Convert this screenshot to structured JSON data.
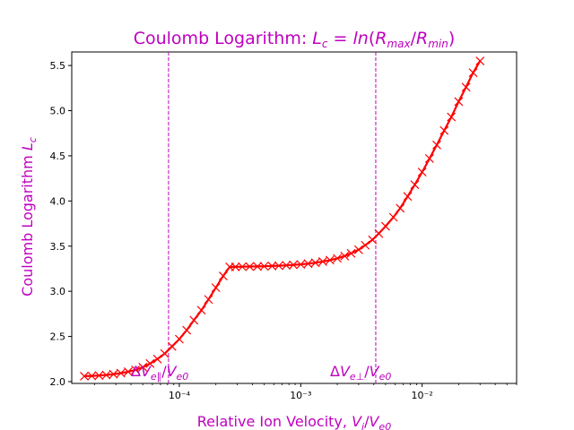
{
  "chart_data": {
    "type": "line",
    "title": "Coulomb Logarithm: L_c = ln(R_max/R_min)",
    "xlabel": "Relative Ion Velocity, V_i/V_e0",
    "ylabel": "Coulomb Logarithm L_c",
    "xscale": "log",
    "xlim": [
      1.3e-05,
      0.06
    ],
    "ylim": [
      1.98,
      5.65
    ],
    "x_ticks": [
      {
        "value": 0.0001,
        "label": "10⁻⁴"
      },
      {
        "value": 0.001,
        "label": "10⁻³"
      },
      {
        "value": 0.01,
        "label": "10⁻²"
      }
    ],
    "y_ticks": [
      {
        "value": 2.0,
        "label": "2.0"
      },
      {
        "value": 2.5,
        "label": "2.5"
      },
      {
        "value": 3.0,
        "label": "3.0"
      },
      {
        "value": 3.5,
        "label": "3.5"
      },
      {
        "value": 4.0,
        "label": "4.0"
      },
      {
        "value": 4.5,
        "label": "4.5"
      },
      {
        "value": 5.0,
        "label": "5.0"
      },
      {
        "value": 5.5,
        "label": "5.5"
      }
    ],
    "grid": false,
    "marker": "x",
    "series_color": "#ff0000",
    "accent_color": "#bf00bf",
    "vlines": [
      {
        "x": 8.15e-05,
        "label": "ΔV_e∥/V_e0"
      },
      {
        "x": 0.00415,
        "label": "ΔV_e⊥/V_e0"
      }
    ],
    "series": [
      {
        "points": [
          [
            1.65e-05,
            2.06
          ],
          [
            1.9e-05,
            2.063
          ],
          [
            2.18e-05,
            2.067
          ],
          [
            2.5e-05,
            2.073
          ],
          [
            2.87e-05,
            2.082
          ],
          [
            3.3e-05,
            2.094
          ],
          [
            3.79e-05,
            2.11
          ],
          [
            4.36e-05,
            2.13
          ],
          [
            5e-05,
            2.16
          ],
          [
            5.74e-05,
            2.2
          ],
          [
            6.6e-05,
            2.25
          ],
          [
            7.58e-05,
            2.31
          ],
          [
            8.71e-05,
            2.39
          ],
          [
            0.0001,
            2.47
          ],
          [
            0.000115,
            2.57
          ],
          [
            0.000132,
            2.68
          ],
          [
            0.000152,
            2.79
          ],
          [
            0.000174,
            2.91
          ],
          [
            0.0002,
            3.04
          ],
          [
            0.00023,
            3.17
          ],
          [
            0.00026,
            3.27
          ],
          [
            0.00029,
            3.27
          ],
          [
            0.00033,
            3.272
          ],
          [
            0.00038,
            3.274
          ],
          [
            0.00044,
            3.275
          ],
          [
            0.0005,
            3.277
          ],
          [
            0.00058,
            3.28
          ],
          [
            0.00066,
            3.283
          ],
          [
            0.00076,
            3.287
          ],
          [
            0.00087,
            3.292
          ],
          [
            0.001,
            3.298
          ],
          [
            0.00115,
            3.306
          ],
          [
            0.00132,
            3.316
          ],
          [
            0.00152,
            3.33
          ],
          [
            0.00174,
            3.345
          ],
          [
            0.002,
            3.365
          ],
          [
            0.0023,
            3.39
          ],
          [
            0.0026,
            3.42
          ],
          [
            0.003,
            3.46
          ],
          [
            0.0034,
            3.51
          ],
          [
            0.0039,
            3.57
          ],
          [
            0.0044,
            3.64
          ],
          [
            0.005,
            3.72
          ],
          [
            0.0058,
            3.82
          ],
          [
            0.0066,
            3.92
          ],
          [
            0.0076,
            4.05
          ],
          [
            0.0087,
            4.18
          ],
          [
            0.01,
            4.32
          ],
          [
            0.0115,
            4.47
          ],
          [
            0.0132,
            4.62
          ],
          [
            0.0152,
            4.78
          ],
          [
            0.0174,
            4.93
          ],
          [
            0.02,
            5.1
          ],
          [
            0.023,
            5.26
          ],
          [
            0.0263,
            5.42
          ],
          [
            0.03,
            5.55
          ]
        ]
      }
    ]
  }
}
